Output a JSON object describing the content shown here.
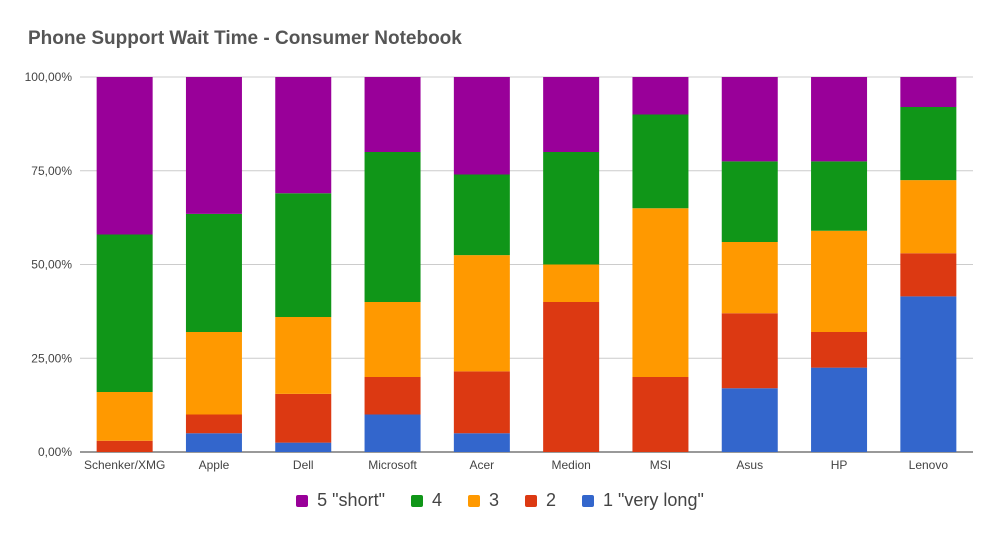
{
  "chart_data": {
    "type": "bar",
    "stacked": true,
    "normalized": true,
    "title": "Phone Support Wait Time - Consumer Notebook",
    "xlabel": "",
    "ylabel": "",
    "ylim": [
      0,
      100
    ],
    "yticks": [
      "0,00%",
      "25,00%",
      "50,00%",
      "75,00%",
      "100,00%"
    ],
    "grid": true,
    "legend_position": "bottom",
    "categories": [
      "Schenker/XMG",
      "Apple",
      "Dell",
      "Microsoft",
      "Acer",
      "Medion",
      "MSI",
      "Asus",
      "HP",
      "Lenovo"
    ],
    "series": [
      {
        "name": "1 \"very long\"",
        "color": "#3366cc",
        "values": [
          0,
          5,
          2.5,
          10,
          5,
          0,
          0,
          17,
          22.5,
          41.5
        ]
      },
      {
        "name": "2",
        "color": "#dc3912",
        "values": [
          3,
          5,
          13,
          10,
          16.5,
          40,
          20,
          20,
          9.5,
          11.5
        ]
      },
      {
        "name": "3",
        "color": "#ff9900",
        "values": [
          13,
          22,
          20.5,
          20,
          31,
          10,
          45,
          19,
          27,
          19.5
        ]
      },
      {
        "name": "4",
        "color": "#109618",
        "values": [
          42,
          31.5,
          33,
          40,
          21.5,
          30,
          25,
          21.5,
          18.5,
          19.5
        ]
      },
      {
        "name": "5 \"short\"",
        "color": "#990099",
        "values": [
          42,
          36.5,
          31,
          20,
          26,
          20,
          10,
          22.5,
          22.5,
          8
        ]
      }
    ],
    "legend_order": [
      4,
      3,
      2,
      1,
      0
    ]
  }
}
